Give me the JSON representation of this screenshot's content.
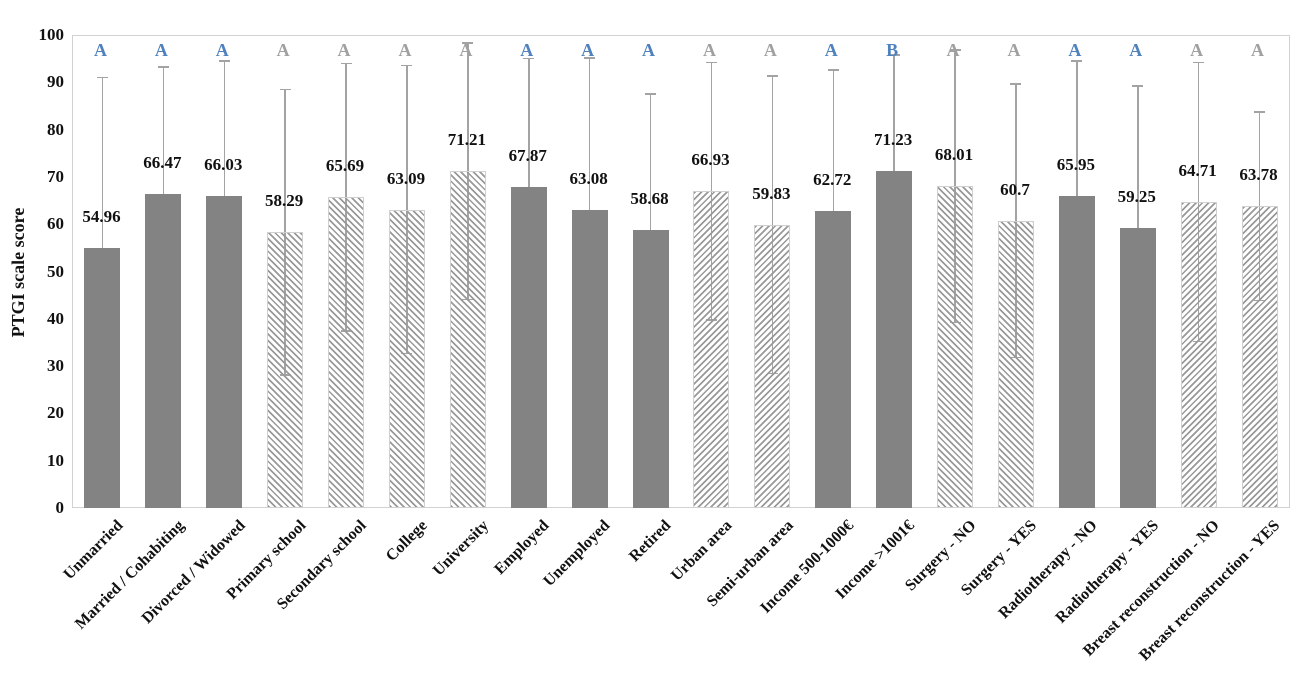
{
  "chart_data": {
    "type": "bar",
    "title": "",
    "xlabel": "",
    "ylabel": "PTGI scale score",
    "ylim": [
      0,
      100
    ],
    "yticks": [
      0,
      10,
      20,
      30,
      40,
      50,
      60,
      70,
      80,
      90,
      100
    ],
    "grid": false,
    "legend": "none",
    "bars": [
      {
        "category": "Unmarried",
        "value": 54.96,
        "value_label": "54.96",
        "letter": "A",
        "letter_color": "blue",
        "pattern": "solid",
        "error_top": 91.0,
        "error_bottom": 18.9
      },
      {
        "category": "Married / Cohabiting",
        "value": 66.47,
        "value_label": "66.47",
        "letter": "A",
        "letter_color": "blue",
        "pattern": "solid",
        "error_top": 93.2,
        "error_bottom": 39.7
      },
      {
        "category": "Divorced / Widowed",
        "value": 66.03,
        "value_label": "66.03",
        "letter": "A",
        "letter_color": "blue",
        "pattern": "solid",
        "error_top": 94.5,
        "error_bottom": 37.6
      },
      {
        "category": "Primary school",
        "value": 58.29,
        "value_label": "58.29",
        "letter": "A",
        "letter_color": "gray",
        "pattern": "hatch-backslash",
        "error_top": 88.5,
        "error_bottom": 28.1
      },
      {
        "category": "Secondary school",
        "value": 65.69,
        "value_label": "65.69",
        "letter": "A",
        "letter_color": "gray",
        "pattern": "hatch-backslash",
        "error_top": 94.0,
        "error_bottom": 37.4
      },
      {
        "category": "College",
        "value": 63.09,
        "value_label": "63.09",
        "letter": "A",
        "letter_color": "gray",
        "pattern": "hatch-backslash",
        "error_top": 93.5,
        "error_bottom": 32.7
      },
      {
        "category": "University",
        "value": 71.21,
        "value_label": "71.21",
        "letter": "A",
        "letter_color": "gray",
        "pattern": "hatch-backslash",
        "error_top": 98.3,
        "error_bottom": 44.1
      },
      {
        "category": "Employed",
        "value": 67.87,
        "value_label": "67.87",
        "letter": "A",
        "letter_color": "blue",
        "pattern": "solid",
        "error_top": 95.0,
        "error_bottom": 40.7
      },
      {
        "category": "Unemployed",
        "value": 63.08,
        "value_label": "63.08",
        "letter": "A",
        "letter_color": "blue",
        "pattern": "solid",
        "error_top": 95.1,
        "error_bottom": 31.1
      },
      {
        "category": "Retired",
        "value": 58.68,
        "value_label": "58.68",
        "letter": "A",
        "letter_color": "blue",
        "pattern": "solid",
        "error_top": 87.5,
        "error_bottom": 29.9
      },
      {
        "category": "Urban area",
        "value": 66.93,
        "value_label": "66.93",
        "letter": "A",
        "letter_color": "gray",
        "pattern": "hatch-slash",
        "error_top": 94.2,
        "error_bottom": 39.7
      },
      {
        "category": "Semi-urban area",
        "value": 59.83,
        "value_label": "59.83",
        "letter": "A",
        "letter_color": "gray",
        "pattern": "hatch-slash",
        "error_top": 91.3,
        "error_bottom": 28.4
      },
      {
        "category": "Income 500-1000€",
        "value": 62.72,
        "value_label": "62.72",
        "letter": "A",
        "letter_color": "blue",
        "pattern": "solid",
        "error_top": 92.6,
        "error_bottom": 32.8
      },
      {
        "category": "Income >1001€",
        "value": 71.23,
        "value_label": "71.23",
        "letter": "B",
        "letter_color": "blue",
        "pattern": "solid",
        "error_top": 95.8,
        "error_bottom": 46.7
      },
      {
        "category": "Surgery - NO",
        "value": 68.01,
        "value_label": "68.01",
        "letter": "A",
        "letter_color": "gray",
        "pattern": "hatch-backslash",
        "error_top": 96.8,
        "error_bottom": 39.2
      },
      {
        "category": "Surgery - YES",
        "value": 60.7,
        "value_label": "60.7",
        "letter": "A",
        "letter_color": "gray",
        "pattern": "hatch-backslash",
        "error_top": 89.6,
        "error_bottom": 31.8
      },
      {
        "category": "Radiotherapy - NO",
        "value": 65.95,
        "value_label": "65.95",
        "letter": "A",
        "letter_color": "blue",
        "pattern": "solid",
        "error_top": 94.5,
        "error_bottom": 37.4
      },
      {
        "category": "Radiotherapy - YES",
        "value": 59.25,
        "value_label": "59.25",
        "letter": "A",
        "letter_color": "blue",
        "pattern": "solid",
        "error_top": 89.2,
        "error_bottom": 29.3
      },
      {
        "category": "Breast reconstruction - NO",
        "value": 64.71,
        "value_label": "64.71",
        "letter": "A",
        "letter_color": "gray",
        "pattern": "hatch-slash",
        "error_top": 94.2,
        "error_bottom": 35.2
      },
      {
        "category": "Breast reconstruction - YES",
        "value": 63.78,
        "value_label": "63.78",
        "letter": "A",
        "letter_color": "gray",
        "pattern": "hatch-slash",
        "error_top": 83.7,
        "error_bottom": 43.9
      }
    ],
    "colors": {
      "solid_fill": "#838383",
      "hatch_line": "#999999",
      "hatch_border": "#d0d0d0",
      "error_bar": "#a3a3a3",
      "letter_blue": "#4f81bd",
      "letter_gray": "#a0a0a0",
      "axis_border": "#d2d2d2",
      "text": "#111111"
    }
  }
}
